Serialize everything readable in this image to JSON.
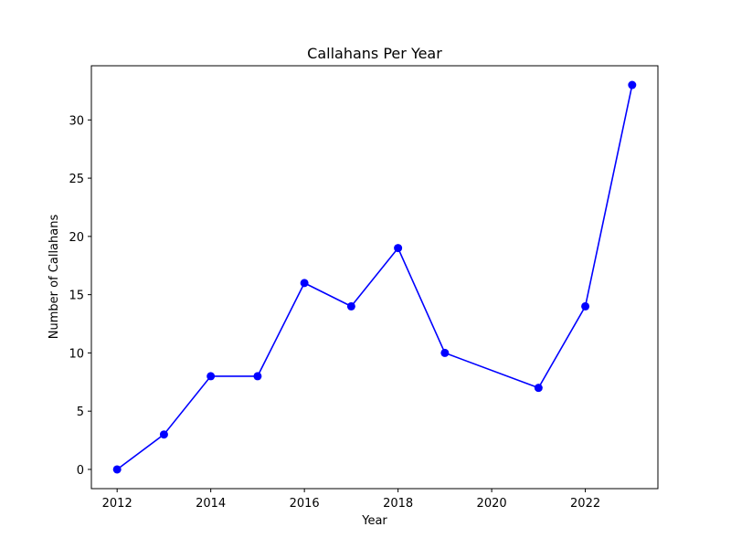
{
  "chart_data": {
    "type": "line",
    "title": "Callahans Per Year",
    "xlabel": "Year",
    "ylabel": "Number of Callahans",
    "xlim": [
      2011.45,
      2023.55
    ],
    "ylim": [
      -1.65,
      34.65
    ],
    "xticks": [
      2012,
      2014,
      2016,
      2018,
      2020,
      2022
    ],
    "yticks": [
      0,
      5,
      10,
      15,
      20,
      25,
      30
    ],
    "grid": false,
    "line_color": "#0000ff",
    "marker": "circle",
    "series": [
      {
        "x": [
          2012,
          2013,
          2014,
          2015,
          2016,
          2017,
          2018,
          2019,
          2021,
          2022,
          2023
        ],
        "y": [
          0,
          3,
          8,
          8,
          16,
          14,
          19,
          10,
          7,
          14,
          33
        ]
      }
    ]
  }
}
